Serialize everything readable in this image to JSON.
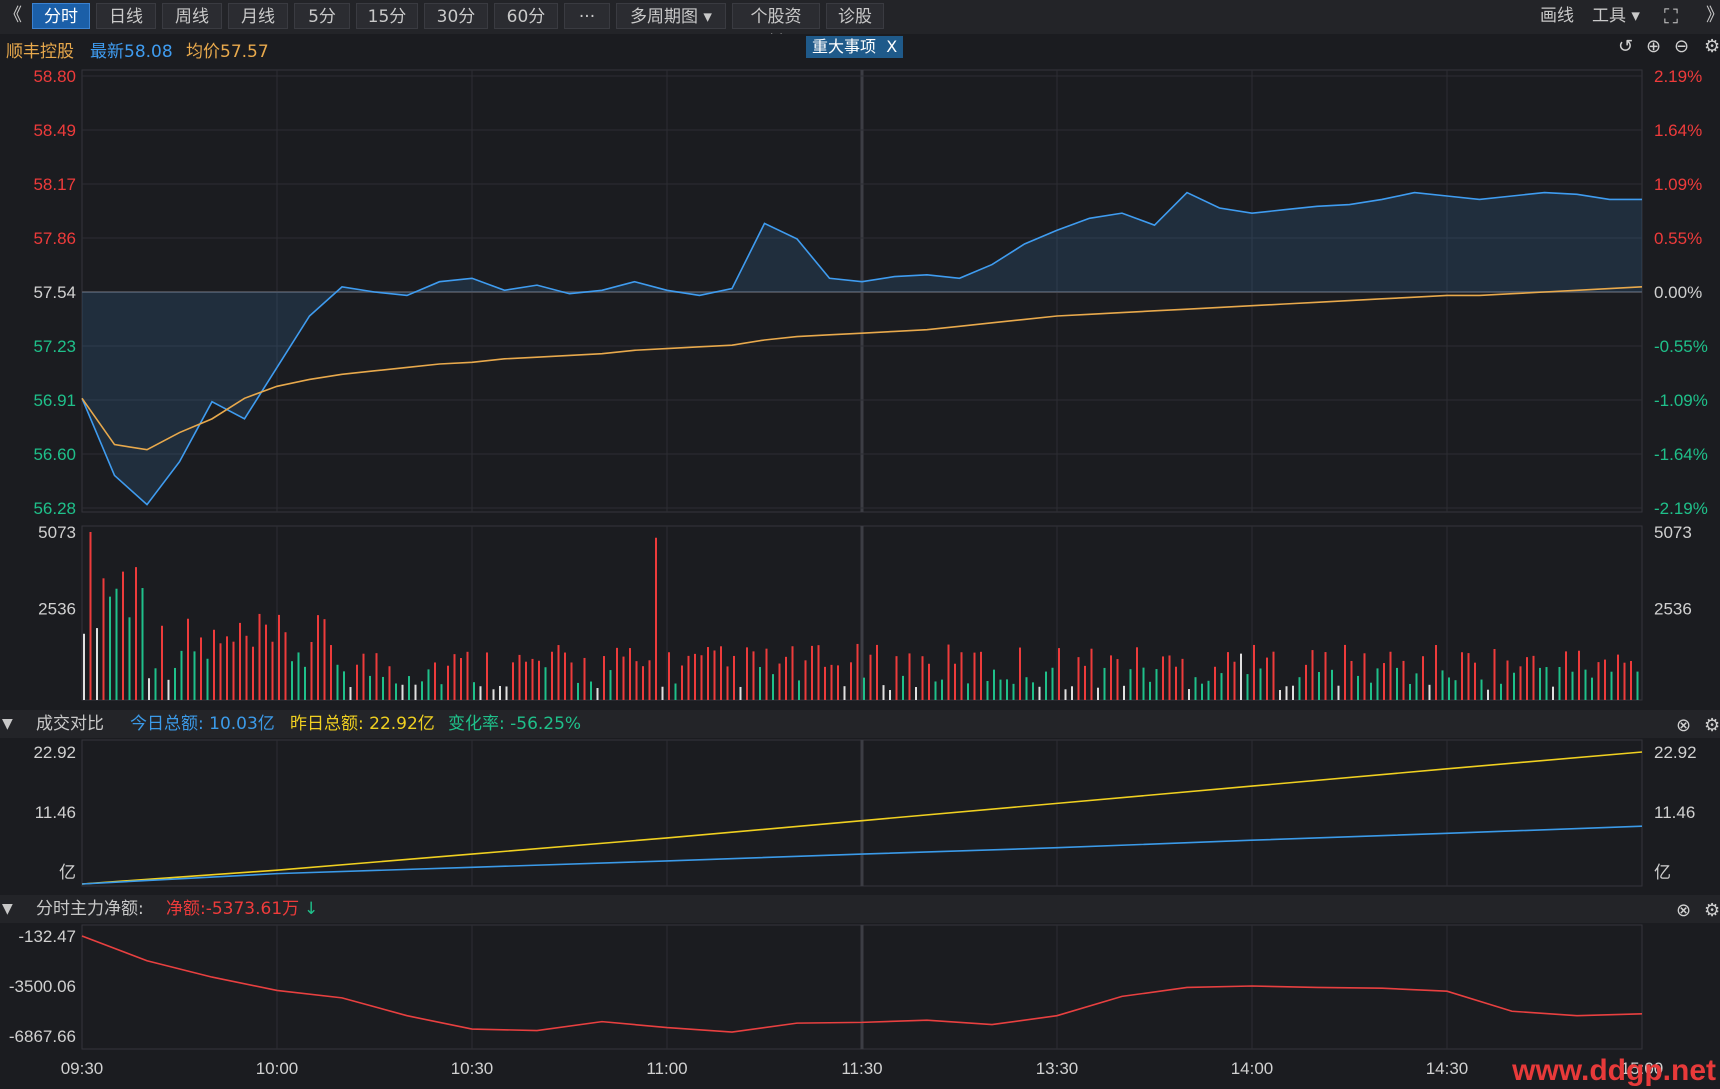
{
  "toolbar": {
    "back_glyph": "《",
    "tabs": [
      "分时",
      "日线",
      "周线",
      "月线",
      "5分",
      "15分",
      "30分",
      "60分",
      "···",
      "多周期图",
      "个股资料",
      "诊股"
    ],
    "draw_label": "画线",
    "tools_label": "工具"
  },
  "info": {
    "stock_name": "顺丰控股",
    "latest": "最新58.08",
    "avg": "均价57.57",
    "event_label": "重大事项",
    "event_close": "X"
  },
  "price_panel": {
    "left_ticks": [
      "58.80",
      "58.49",
      "58.17",
      "57.86",
      "57.54",
      "57.23",
      "56.91",
      "56.60",
      "56.28"
    ],
    "right_ticks": [
      "2.19%",
      "1.64%",
      "1.09%",
      "0.55%",
      "0.00%",
      "-0.55%",
      "-1.09%",
      "-1.64%",
      "-2.19%"
    ],
    "prev_close": 57.54,
    "ymin": 56.28,
    "ymax": 58.8
  },
  "volume_panel": {
    "ticks": [
      "5073",
      "2536"
    ],
    "max": 5073
  },
  "turnover_panel": {
    "title": "成交对比",
    "today": "今日总额: 10.03亿",
    "yesterday": "昨日总额: 22.92亿",
    "change": "变化率: -56.25%",
    "ticks": [
      "22.92",
      "11.46",
      "亿"
    ],
    "today_total": 10.03,
    "yesterday_total": 22.92
  },
  "flow_panel": {
    "title": "分时主力净额:",
    "net": "净额:-5373.61万",
    "ticks": [
      "-132.47",
      "-3500.06",
      "-6867.66"
    ],
    "ymax": -132.47,
    "ymin": -6867.66
  },
  "time_axis": [
    "09:30",
    "10:00",
    "10:30",
    "11:00",
    "11:30",
    "13:30",
    "14:00",
    "14:30",
    "15:00"
  ],
  "watermark": "www.ddgp.net",
  "colors": {
    "price_line": "#3f9cf0",
    "avg_line": "#e8a94c",
    "up": "#ee3b3b",
    "down": "#1fc08a",
    "today_line": "#3b9ae8",
    "yesterday_line": "#f0d020",
    "flow_line": "#e84040"
  },
  "chart_data": [
    {
      "type": "line",
      "series": [
        {
          "name": "最新",
          "x": [
            0,
            5,
            10,
            15,
            20,
            25,
            30,
            35,
            40,
            45,
            50,
            55,
            60,
            65,
            70,
            75,
            80,
            85,
            90,
            95,
            100,
            105,
            110,
            115,
            120,
            125,
            130,
            135,
            140,
            145,
            150,
            155,
            160,
            165,
            170,
            175,
            180,
            185,
            190,
            195,
            200,
            205,
            210,
            215,
            220,
            225,
            230,
            235,
            240
          ],
          "values": [
            56.92,
            56.47,
            56.3,
            56.55,
            56.9,
            56.8,
            57.1,
            57.4,
            57.57,
            57.54,
            57.52,
            57.6,
            57.62,
            57.55,
            57.58,
            57.53,
            57.55,
            57.6,
            57.55,
            57.52,
            57.56,
            57.94,
            57.85,
            57.62,
            57.6,
            57.63,
            57.64,
            57.62,
            57.7,
            57.82,
            57.9,
            57.97,
            58.0,
            57.93,
            58.12,
            58.03,
            58.0,
            58.02,
            58.04,
            58.05,
            58.08,
            58.12,
            58.1,
            58.08,
            58.1,
            58.12,
            58.11,
            58.08,
            58.08
          ]
        },
        {
          "name": "均价",
          "x": [
            0,
            5,
            10,
            15,
            20,
            25,
            30,
            35,
            40,
            45,
            50,
            55,
            60,
            65,
            70,
            75,
            80,
            85,
            90,
            95,
            100,
            105,
            110,
            115,
            120,
            125,
            130,
            135,
            140,
            145,
            150,
            155,
            160,
            165,
            170,
            175,
            180,
            185,
            190,
            195,
            200,
            205,
            210,
            215,
            220,
            225,
            230,
            235,
            240
          ],
          "values": [
            56.92,
            56.65,
            56.62,
            56.72,
            56.8,
            56.92,
            56.99,
            57.03,
            57.06,
            57.08,
            57.1,
            57.12,
            57.13,
            57.15,
            57.16,
            57.17,
            57.18,
            57.2,
            57.21,
            57.22,
            57.23,
            57.26,
            57.28,
            57.29,
            57.3,
            57.31,
            57.32,
            57.34,
            57.36,
            57.38,
            57.4,
            57.41,
            57.42,
            57.43,
            57.44,
            57.45,
            57.46,
            57.47,
            57.48,
            57.49,
            57.5,
            57.51,
            57.52,
            57.52,
            57.53,
            57.54,
            57.55,
            57.56,
            57.57
          ]
        }
      ],
      "ylim": [
        56.28,
        58.8
      ]
    },
    {
      "type": "line",
      "series": [
        {
          "name": "今日总额",
          "x": [
            0,
            30,
            60,
            90,
            120,
            150,
            180,
            210,
            240
          ],
          "values": [
            0,
            1.8,
            2.9,
            4.0,
            5.2,
            6.3,
            7.6,
            8.8,
            10.03
          ]
        },
        {
          "name": "昨日总额",
          "x": [
            0,
            30,
            60,
            90,
            120,
            150,
            180,
            210,
            240
          ],
          "values": [
            0,
            2.4,
            5.2,
            8.0,
            11.0,
            14.0,
            17.0,
            20.0,
            22.92
          ]
        }
      ],
      "ylim": [
        0,
        22.92
      ]
    },
    {
      "type": "line",
      "series": [
        {
          "name": "净额",
          "x": [
            0,
            10,
            20,
            30,
            40,
            50,
            60,
            70,
            80,
            90,
            100,
            110,
            120,
            130,
            140,
            150,
            160,
            170,
            180,
            190,
            200,
            210,
            220,
            230,
            240
          ],
          "values": [
            -132,
            -1800,
            -2900,
            -3800,
            -4300,
            -5500,
            -6400,
            -6500,
            -5900,
            -6300,
            -6600,
            -6000,
            -5950,
            -5800,
            -6100,
            -5500,
            -4200,
            -3600,
            -3500,
            -3600,
            -3650,
            -3850,
            -5200,
            -5500,
            -5373
          ]
        }
      ],
      "ylim": [
        -6867.66,
        -132.47
      ]
    }
  ]
}
